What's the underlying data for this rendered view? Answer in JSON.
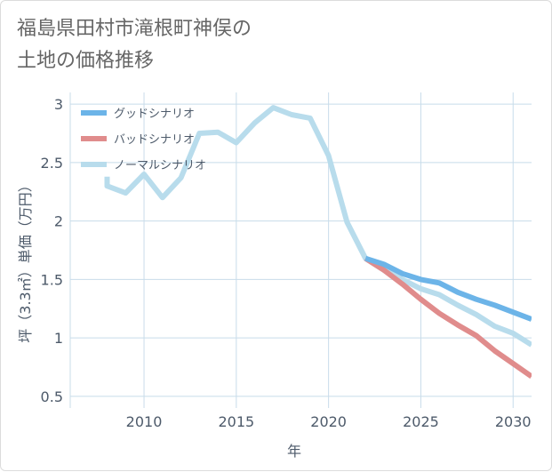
{
  "chart_data": {
    "type": "line",
    "title": "福島県田村市滝根町神俣の\n土地の価格推移",
    "xlabel": "年",
    "ylabel": "坪（3.3㎡）単価（万円）",
    "xlim": [
      2006,
      2031
    ],
    "ylim": [
      0.4,
      3.1
    ],
    "x_ticks": [
      2010,
      2015,
      2020,
      2025,
      2030
    ],
    "y_ticks": [
      0.5,
      1,
      1.5,
      2,
      2.5,
      3
    ],
    "y_tick_labels": [
      "0.5",
      "1",
      "1.5",
      "2",
      "2.5",
      "3"
    ],
    "grid": true,
    "legend_position": "top-left",
    "series": [
      {
        "name": "グッドシナリオ",
        "color": "#6cb4e8",
        "x": [
          2022,
          2023,
          2024,
          2025,
          2026,
          2027,
          2028,
          2029,
          2030,
          2031
        ],
        "y": [
          1.68,
          1.63,
          1.55,
          1.5,
          1.47,
          1.39,
          1.33,
          1.28,
          1.22,
          1.16
        ]
      },
      {
        "name": "バッドシナリオ",
        "color": "#e08c8c",
        "x": [
          2022,
          2023,
          2024,
          2025,
          2026,
          2027,
          2028,
          2029,
          2030,
          2031
        ],
        "y": [
          1.68,
          1.58,
          1.46,
          1.33,
          1.21,
          1.11,
          1.02,
          0.89,
          0.78,
          0.67
        ]
      },
      {
        "name": "ノーマルシナリオ",
        "color": "#b8dcec",
        "x": [
          2008,
          2008,
          2009,
          2010,
          2011,
          2012,
          2013,
          2014,
          2015,
          2016,
          2017,
          2018,
          2019,
          2020,
          2021,
          2022,
          2023,
          2024,
          2025,
          2026,
          2027,
          2028,
          2029,
          2030,
          2031
        ],
        "y": [
          2.38,
          2.3,
          2.24,
          2.4,
          2.2,
          2.37,
          2.75,
          2.76,
          2.67,
          2.84,
          2.97,
          2.91,
          2.88,
          2.56,
          1.99,
          1.68,
          1.58,
          1.5,
          1.42,
          1.37,
          1.28,
          1.2,
          1.1,
          1.04,
          0.94
        ]
      }
    ]
  }
}
